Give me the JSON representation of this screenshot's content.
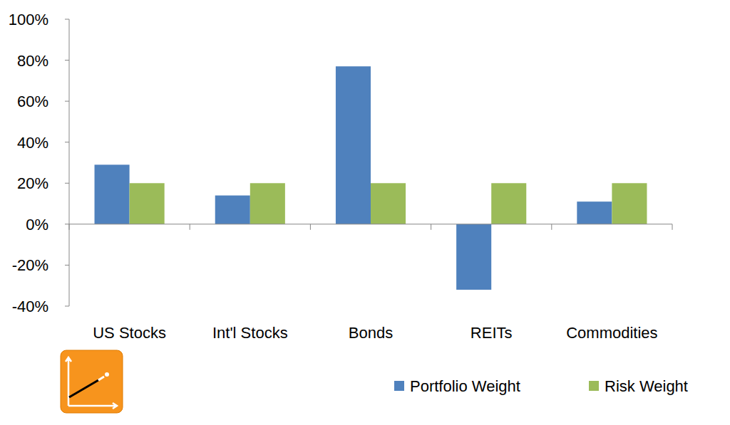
{
  "chart_data": {
    "type": "bar",
    "categories": [
      "US Stocks",
      "Int'l Stocks",
      "Bonds",
      "REITs",
      "Commodities"
    ],
    "series": [
      {
        "name": "Portfolio Weight",
        "color": "#4f81bd",
        "values": [
          29,
          14,
          77,
          -32,
          11
        ]
      },
      {
        "name": "Risk Weight",
        "color": "#9bbb59",
        "values": [
          20,
          20,
          20,
          20,
          20
        ]
      }
    ],
    "ylim": [
      -40,
      100
    ],
    "yticks": [
      {
        "value": -40,
        "label": "-40%"
      },
      {
        "value": -20,
        "label": "-20%"
      },
      {
        "value": 0,
        "label": "0%"
      },
      {
        "value": 20,
        "label": "20%"
      },
      {
        "value": 40,
        "label": "40%"
      },
      {
        "value": 60,
        "label": "60%"
      },
      {
        "value": 80,
        "label": "80%"
      },
      {
        "value": 100,
        "label": "100%"
      }
    ],
    "grid": false,
    "legend": "bottom-right"
  }
}
